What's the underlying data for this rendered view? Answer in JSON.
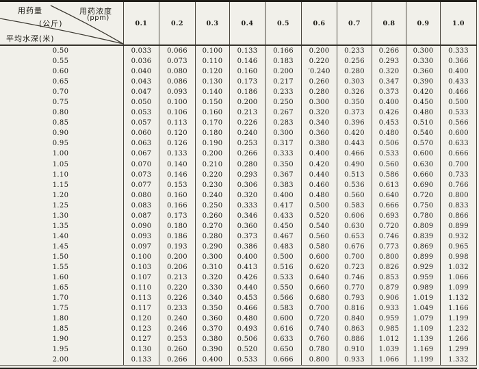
{
  "header": {
    "corner": {
      "dose_label": "用药量",
      "dose_unit": "(公斤)",
      "conc_label": "用药浓度",
      "conc_unit": "(ppm)",
      "depth_label": "平均水深(米)"
    },
    "columns": [
      "0.1",
      "0.2",
      "0.3",
      "0.4",
      "0.5",
      "0.6",
      "0.7",
      "0.8",
      "0.9",
      "1.0"
    ]
  },
  "table": {
    "rows": [
      {
        "depth": "0.50",
        "values": [
          "0.033",
          "0.066",
          "0.100",
          "0.133",
          "0.166",
          "0.200",
          "0.233",
          "0.266",
          "0.300",
          "0.333"
        ]
      },
      {
        "depth": "0.55",
        "values": [
          "0.036",
          "0.073",
          "0.110",
          "0.146",
          "0.183",
          "0.220",
          "0.256",
          "0.293",
          "0.330",
          "0.366"
        ]
      },
      {
        "depth": "0.60",
        "values": [
          "0.040",
          "0.080",
          "0.120",
          "0.160",
          "0.200",
          "′0.240",
          "0.280",
          "0.320",
          "0.360",
          "0.400"
        ]
      },
      {
        "depth": "0.65",
        "values": [
          "0.043",
          "0.086",
          "0.130",
          "0.173",
          "0.217",
          "0.260",
          "0.303",
          "0.347",
          "0.390",
          "0.433"
        ]
      },
      {
        "depth": "0.70",
        "values": [
          "0.047",
          "0.093",
          "0.140",
          "0.186",
          "0.233",
          "0.280",
          "0.326",
          "0.373",
          "0.420",
          "0.466"
        ]
      },
      {
        "depth": "0.75",
        "values": [
          "0.050",
          "0.100",
          "0.150",
          "0.200",
          "0.250",
          "0.300",
          "0.350",
          "0.400",
          "0.450",
          "0.500"
        ]
      },
      {
        "depth": "0.80",
        "values": [
          "0.053",
          "0.106",
          "0.160",
          "0.213",
          "0.267",
          "0.320",
          "0.373",
          "0.426",
          "0.480",
          "0.533"
        ]
      },
      {
        "depth": "0.85",
        "values": [
          "0.057",
          "0.113",
          "0.170",
          "0.226",
          "0.283",
          "0.340",
          "0.396",
          "0.453",
          "0.510",
          "0.566"
        ]
      },
      {
        "depth": "0.90",
        "values": [
          "0.060",
          "0.120",
          "0.180",
          "0.240",
          "0.300",
          "0.360",
          "0.420",
          "0.480",
          "0.540",
          "0.600"
        ]
      },
      {
        "depth": "0.95",
        "values": [
          "0.063",
          "0.126",
          "0.190",
          "0.253",
          "0.317",
          "0.380",
          "0.443",
          "0.506",
          "0.570",
          "0.633"
        ]
      },
      {
        "depth": "1.00",
        "values": [
          "0.067",
          "0.133",
          "0.200",
          "0.266",
          "0.333",
          "0.400",
          "0.466",
          "0.533",
          "0.600",
          "0.666"
        ]
      },
      {
        "depth": "1.05",
        "values": [
          "0.070",
          "0.140",
          "0.210",
          "0.280",
          "0.350",
          "0.420",
          "0.490",
          "0.560",
          "0.630",
          "0.700"
        ]
      },
      {
        "depth": "1.10",
        "values": [
          "0.073",
          "0.146",
          "0.220",
          "0.293",
          "0.367",
          "0.440",
          "0.513",
          "0.586",
          "0.660",
          "0.733"
        ]
      },
      {
        "depth": "1.15",
        "values": [
          "0.077",
          "0.153",
          "0.230",
          "0.306",
          "0.383",
          "0.460",
          "0.536",
          "0.613",
          "0.690",
          "0.766"
        ]
      },
      {
        "depth": "1.20",
        "values": [
          "0.080",
          "0.160",
          "0.240",
          "0.320",
          "0.400",
          "0.480",
          "0.560",
          "0.640",
          "0.720",
          "0.800"
        ]
      },
      {
        "depth": "1.25",
        "values": [
          "0.083",
          "0.166",
          "0.250",
          "0.333",
          "0.417",
          "0.500",
          "0.583",
          "0.666",
          "0.750",
          "0.833"
        ]
      },
      {
        "depth": "1.30",
        "values": [
          "0.087",
          "0.173",
          "0.260",
          "0.346",
          "0.433",
          "0.520",
          "0.606",
          "0.693",
          "0.780",
          "0.866"
        ]
      },
      {
        "depth": "1.35",
        "values": [
          "0.090",
          "0.180",
          "0.270",
          "0.360",
          "0.450",
          "0.540",
          "0.630",
          "0.720",
          "0.809",
          "0.899"
        ]
      },
      {
        "depth": "1.40",
        "values": [
          "0.093",
          "0.186",
          "0.280",
          "0.373",
          "0.467",
          "0.560",
          "0.653",
          "0.746",
          "0.839",
          "0.932"
        ]
      },
      {
        "depth": "1.45",
        "values": [
          "0.097",
          "0.193",
          "0.290",
          "0.386",
          "0.483",
          "0.580",
          "0.676",
          "0.773",
          "0.869",
          "0.965"
        ]
      },
      {
        "depth": "1.50",
        "values": [
          "0.100",
          "0.200",
          "0.300",
          "0.400",
          "0.500",
          "0.600",
          "0.700",
          "0.800",
          "0.899",
          "0.998"
        ]
      },
      {
        "depth": "1.55",
        "values": [
          "0.103",
          "0.206",
          "0.310",
          "0.413",
          "0.516",
          "0.620",
          "0.723",
          "0.826",
          "0.929",
          "1.032"
        ]
      },
      {
        "depth": "1.60",
        "values": [
          "0.107",
          "0.213",
          "0.320",
          "0.426",
          "0.533",
          "0.640",
          "0.746",
          "0.853",
          "0.959",
          "1.066"
        ]
      },
      {
        "depth": "1.65",
        "values": [
          "0.110",
          "0.220",
          "0.330",
          "0.440",
          "0.550",
          "0.660",
          "0.770",
          "0.879",
          "0.989",
          "1.099"
        ]
      },
      {
        "depth": "1.70",
        "values": [
          "0.113",
          "0.226",
          "0.340",
          "0.453",
          "0.566",
          "0.680",
          "0.793",
          "0.906",
          "1.019",
          "1.132"
        ]
      },
      {
        "depth": "1.75",
        "values": [
          "0.117",
          "0.233",
          "0.350",
          "0.466",
          "0.583",
          "0.700",
          "0.816",
          "0.933",
          "1.049",
          "1.166"
        ]
      },
      {
        "depth": "1.80",
        "values": [
          "0.120",
          "0.240",
          "0.360",
          "0.480",
          "0.600",
          "0.720",
          "0.840",
          "0.959",
          "1.079",
          "1.199"
        ]
      },
      {
        "depth": "1.85",
        "values": [
          "0.123",
          "0.246",
          "0.370",
          "0.493",
          "0.616",
          "0.740",
          "0.863",
          "0.985",
          "1.109",
          "1.232"
        ]
      },
      {
        "depth": "1.90",
        "values": [
          "0.127",
          "0.253",
          "0.380",
          "0.506",
          "0.633",
          "0.760",
          "0.886",
          "1.012",
          "1.139",
          "1.266"
        ]
      },
      {
        "depth": "1.95",
        "values": [
          "0.130",
          "0.260",
          "0.390",
          "0.520",
          "0.650",
          "0.780",
          "0.910",
          "1.039",
          "1.169",
          "1.299"
        ]
      },
      {
        "depth": "2.00",
        "values": [
          "0.133",
          "0.266",
          "0.400",
          "0.533",
          "0.666",
          "0.800",
          "0.933",
          "1.066",
          "1.199",
          "1.332"
        ]
      }
    ]
  },
  "colors": {
    "paper": "#f1f0ea",
    "ink": "#1a1914",
    "line": "#4a463d",
    "heavy_line": "#201e19"
  }
}
